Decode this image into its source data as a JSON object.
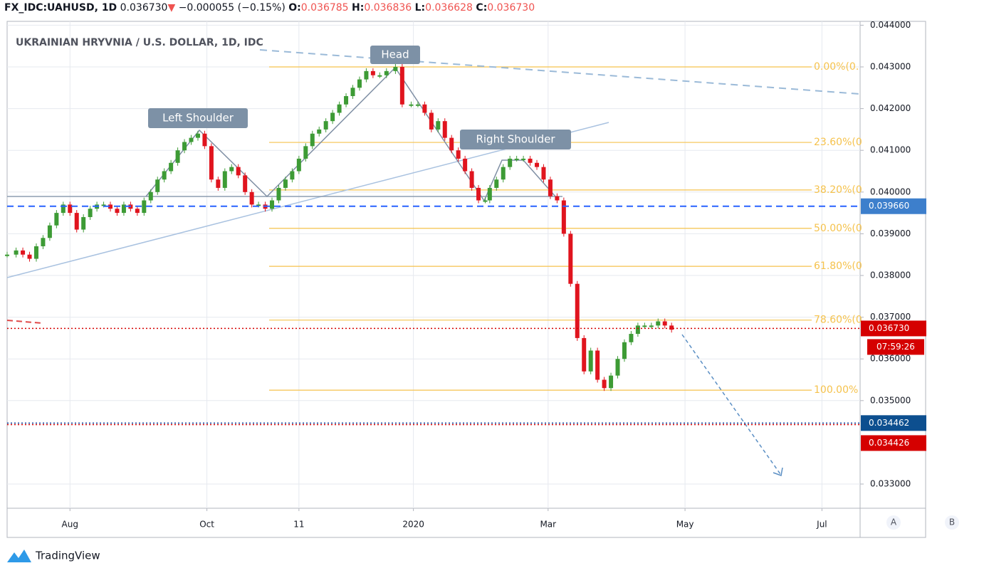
{
  "chart_data": {
    "type": "candlestick",
    "header": {
      "symbol": "FX_IDC:UAHUSD, 1D",
      "last": "0.036730",
      "arrow": "▼",
      "change": "−0.000055 (−0.15%)",
      "ohlc": [
        {
          "key": "O:",
          "value": "0.036785"
        },
        {
          "key": "H:",
          "value": "0.036836"
        },
        {
          "key": "L:",
          "value": "0.036628"
        },
        {
          "key": "C:",
          "value": "0.036730"
        }
      ]
    },
    "title": "UKRAINIAN HRYVNIA / U.S. DOLLAR, 1D, IDC",
    "annotations": [
      "Left Shoulder",
      "Head",
      "Right Shoulder"
    ],
    "up_color": "#3d9b35",
    "down_color": "#e0141e",
    "x": [
      3,
      7,
      10,
      13,
      16,
      19,
      22,
      25,
      28,
      31,
      34,
      37,
      40,
      43,
      46,
      49,
      52,
      55,
      58,
      61,
      64,
      67,
      70,
      73,
      76,
      79,
      82,
      85,
      88,
      91,
      94,
      97,
      100,
      103,
      106,
      109,
      112,
      115,
      118,
      121,
      124,
      127,
      130,
      133,
      136,
      139,
      142,
      145,
      148,
      151,
      154,
      157,
      160,
      163,
      166,
      169,
      172,
      176,
      179,
      183,
      186,
      189,
      192,
      195,
      198,
      201,
      204,
      207,
      210,
      213,
      216,
      218,
      221,
      224,
      227,
      230,
      233,
      236,
      239,
      242,
      245,
      248,
      251,
      254,
      257,
      260,
      263,
      266,
      269,
      272,
      275,
      278,
      281,
      284,
      287,
      290,
      293,
      296,
      299
    ],
    "values": [
      0.0385,
      0.0386,
      0.0385,
      0.0384,
      0.0387,
      0.0389,
      0.0392,
      0.0395,
      0.0397,
      0.0395,
      0.0391,
      0.0394,
      0.0396,
      0.0397,
      0.0397,
      0.0396,
      0.0395,
      0.0397,
      0.0396,
      0.0395,
      0.0398,
      0.04,
      0.0403,
      0.0405,
      0.0407,
      0.041,
      0.0412,
      0.0413,
      0.0414,
      0.0411,
      0.0403,
      0.0401,
      0.0405,
      0.0406,
      0.0404,
      0.04,
      0.0397,
      0.0397,
      0.0396,
      0.0398,
      0.0401,
      0.0403,
      0.0405,
      0.0408,
      0.0411,
      0.0414,
      0.0415,
      0.0417,
      0.0419,
      0.0421,
      0.0423,
      0.0425,
      0.0427,
      0.0429,
      0.0428,
      0.0428,
      0.0429,
      0.043,
      0.0421,
      0.0421,
      0.0421,
      0.0419,
      0.0415,
      0.0417,
      0.0413,
      0.041,
      0.0408,
      0.0405,
      0.0401,
      0.0398,
      0.0398,
      0.0401,
      0.0403,
      0.0406,
      0.0408,
      0.0408,
      0.0408,
      0.0407,
      0.0406,
      0.0403,
      0.0399,
      0.0398,
      0.039,
      0.0378,
      0.0365,
      0.0357,
      0.0362,
      0.0355,
      0.0353,
      0.0356,
      0.036,
      0.0364,
      0.0366,
      0.0368,
      0.0368,
      0.0368,
      0.0369,
      0.0368,
      0.0367
    ],
    "xlim": [
      3,
      383
    ],
    "xticks": [
      {
        "value": 31,
        "label": "Aug"
      },
      {
        "value": 92,
        "label": "Oct"
      },
      {
        "value": 133,
        "label": "11"
      },
      {
        "value": 184,
        "label": "2020"
      },
      {
        "value": 244,
        "label": "Mar"
      },
      {
        "value": 305,
        "label": "May"
      },
      {
        "value": 366,
        "label": "Jul"
      }
    ],
    "ylim": [
      0.03242,
      0.044092
    ],
    "yticks": [
      {
        "value": 0.033,
        "label": "0.033000"
      },
      {
        "value": 0.035,
        "label": "0.035000"
      },
      {
        "value": 0.036,
        "label": "0.036000"
      },
      {
        "value": 0.037,
        "label": "0.037000"
      },
      {
        "value": 0.038,
        "label": "0.038000"
      },
      {
        "value": 0.039,
        "label": "0.039000"
      },
      {
        "value": 0.04,
        "label": "0.040000"
      },
      {
        "value": 0.041,
        "label": "0.041000"
      },
      {
        "value": 0.042,
        "label": "0.042000"
      },
      {
        "value": 0.043,
        "label": "0.043000"
      },
      {
        "value": 0.044,
        "label": "0.044000"
      }
    ],
    "grid": true,
    "fib_levels": [
      {
        "label": "0.00%(0.",
        "value": 0.043
      },
      {
        "label": "23.60%(0",
        "value": 0.04119
      },
      {
        "label": "38.20%(0",
        "value": 0.04005
      },
      {
        "label": "50.00%(0",
        "value": 0.03913
      },
      {
        "label": "61.80%(0",
        "value": 0.03822
      },
      {
        "label": "78.60%(0",
        "value": 0.03693
      },
      {
        "label": "100.00%",
        "value": 0.03525
      }
    ],
    "fib_color": "#f5c24c",
    "price_lines": [
      {
        "value": 0.03966,
        "label": "0.039660",
        "color": "#2962ff",
        "box": "#3d7fcc",
        "style": "dashed"
      },
      {
        "value": 0.03673,
        "label": "0.036730",
        "color": "#d50000",
        "box": "#d50000",
        "style": "dotted",
        "timer": "07:59:26"
      },
      {
        "value": 0.034462,
        "label": "0.034462",
        "color": "#0d47a1",
        "box": "#0d4f8f",
        "style": "dotted"
      },
      {
        "value": 0.034426,
        "label": "0.034426",
        "color": "#d50000",
        "box": "#d50000",
        "style": "dotted"
      }
    ],
    "scale_buttons": [
      "A",
      "B"
    ],
    "brand": "TradingView"
  }
}
